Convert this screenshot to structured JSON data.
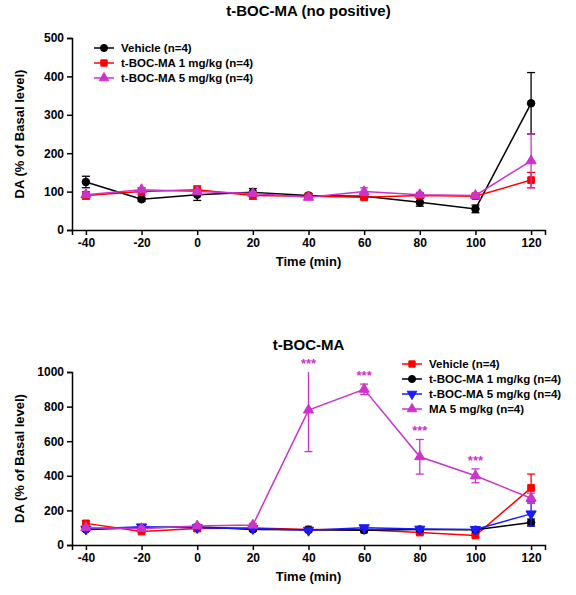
{
  "chart_data": [
    {
      "type": "line",
      "title": "t-BOC-MA (no positive)",
      "x_label": "Time (min)",
      "y_label": "DA (% of Basal level)",
      "x": [
        -40,
        -20,
        0,
        20,
        40,
        60,
        80,
        100,
        120
      ],
      "xlim": [
        -45,
        125
      ],
      "xticks": [
        -40,
        -20,
        0,
        20,
        40,
        60,
        80,
        100,
        120
      ],
      "ylim": [
        0,
        500
      ],
      "yticks": [
        0,
        100,
        200,
        300,
        400,
        500
      ],
      "grid": false,
      "legend": "top-left",
      "series": [
        {
          "name": "Vehicle (n=4)",
          "color": "#000000",
          "marker": "circle",
          "values": [
            125,
            80,
            92,
            98,
            90,
            88,
            72,
            55,
            330
          ],
          "errors": [
            15,
            5,
            15,
            10,
            5,
            5,
            10,
            10,
            80
          ]
        },
        {
          "name": "t-BOC-MA 1 mg/kg (n=4)",
          "color": "#ff0000",
          "marker": "square",
          "values": [
            90,
            100,
            105,
            90,
            88,
            85,
            90,
            88,
            130
          ],
          "errors": [
            10,
            10,
            10,
            10,
            5,
            5,
            5,
            5,
            20
          ]
        },
        {
          "name": "t-BOC-MA 5 mg/kg (n=4)",
          "color": "#cc33cc",
          "marker": "triangle",
          "values": [
            92,
            105,
            100,
            95,
            85,
            100,
            92,
            90,
            180
          ],
          "errors": [
            5,
            5,
            5,
            5,
            5,
            10,
            5,
            5,
            70
          ]
        }
      ]
    },
    {
      "type": "line",
      "title": "t-BOC-MA",
      "x_label": "Time (min)",
      "y_label": "DA (% of Basal level)",
      "x": [
        -40,
        -20,
        0,
        20,
        40,
        60,
        80,
        100,
        120
      ],
      "xlim": [
        -45,
        125
      ],
      "xticks": [
        -40,
        -20,
        0,
        20,
        40,
        60,
        80,
        100,
        120
      ],
      "ylim": [
        0,
        1000
      ],
      "yticks": [
        0,
        200,
        400,
        600,
        800,
        1000
      ],
      "grid": false,
      "legend": "top-right",
      "series": [
        {
          "name": "Vehicle (n=4)",
          "color": "#ff0000",
          "marker": "square",
          "values": [
            125,
            78,
            95,
            98,
            90,
            88,
            72,
            55,
            330
          ],
          "errors": [
            15,
            5,
            15,
            10,
            5,
            5,
            10,
            10,
            80
          ]
        },
        {
          "name": "t-BOC-MA 1 mg/kg (n=4)",
          "color": "#000000",
          "marker": "circle",
          "values": [
            90,
            100,
            105,
            90,
            88,
            85,
            90,
            88,
            130
          ],
          "errors": [
            10,
            10,
            10,
            10,
            5,
            5,
            5,
            5,
            20
          ]
        },
        {
          "name": "t-BOC-MA 5 mg/kg (n=4)",
          "color": "#1a1aff",
          "marker": "triangle-down",
          "values": [
            92,
            105,
            100,
            95,
            85,
            100,
            92,
            90,
            180
          ],
          "errors": [
            5,
            5,
            5,
            5,
            5,
            10,
            5,
            5,
            70
          ]
        },
        {
          "name": "MA 5 mg/kg (n=4)",
          "color": "#cc33cc",
          "marker": "triangle",
          "values": [
            100,
            95,
            110,
            115,
            780,
            900,
            510,
            400,
            270
          ],
          "errors": [
            10,
            10,
            10,
            10,
            240,
            30,
            100,
            40,
            30
          ]
        }
      ],
      "annotations": [
        {
          "text": "***",
          "x": 40,
          "color": "#cc33cc"
        },
        {
          "text": "***",
          "x": 60,
          "color": "#cc33cc"
        },
        {
          "text": "***",
          "x": 80,
          "color": "#cc33cc"
        },
        {
          "text": "***",
          "x": 100,
          "color": "#cc33cc"
        }
      ]
    }
  ]
}
